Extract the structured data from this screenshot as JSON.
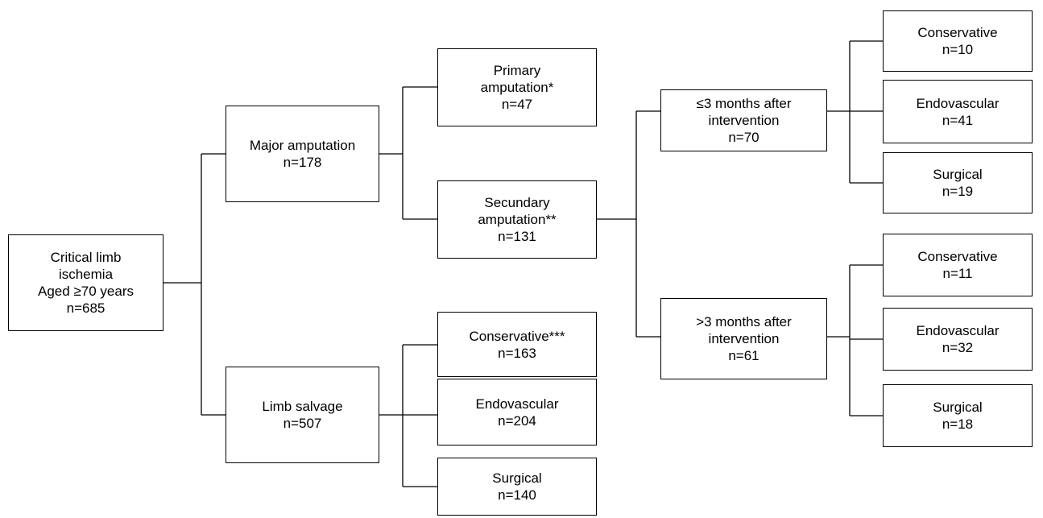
{
  "nodes": [
    {
      "lines": [
        "Critical limb",
        "ischemia",
        "Aged ≥70 years",
        "n=685"
      ]
    },
    {
      "lines": [
        "Major amputation",
        "n=178"
      ]
    },
    {
      "lines": [
        "Limb salvage",
        "n=507"
      ]
    },
    {
      "lines": [
        "Primary",
        "amputation*",
        "n=47"
      ]
    },
    {
      "lines": [
        "Secundary",
        "amputation**",
        "n=131"
      ]
    },
    {
      "lines": [
        "Conservative***",
        "n=163"
      ]
    },
    {
      "lines": [
        "Endovascular",
        "n=204"
      ]
    },
    {
      "lines": [
        "Surgical",
        "n=140"
      ]
    },
    {
      "lines": [
        "≤3 months after",
        "intervention",
        "n=70"
      ]
    },
    {
      "lines": [
        ">3 months after",
        "intervention",
        "n=61"
      ]
    },
    {
      "lines": [
        "Conservative",
        "n=10"
      ]
    },
    {
      "lines": [
        "Endovascular",
        "n=41"
      ]
    },
    {
      "lines": [
        "Surgical",
        "n=19"
      ]
    },
    {
      "lines": [
        "Conservative",
        "n=11"
      ]
    },
    {
      "lines": [
        "Endovascular",
        "n=32"
      ]
    },
    {
      "lines": [
        "Surgical",
        "n=18"
      ]
    }
  ]
}
